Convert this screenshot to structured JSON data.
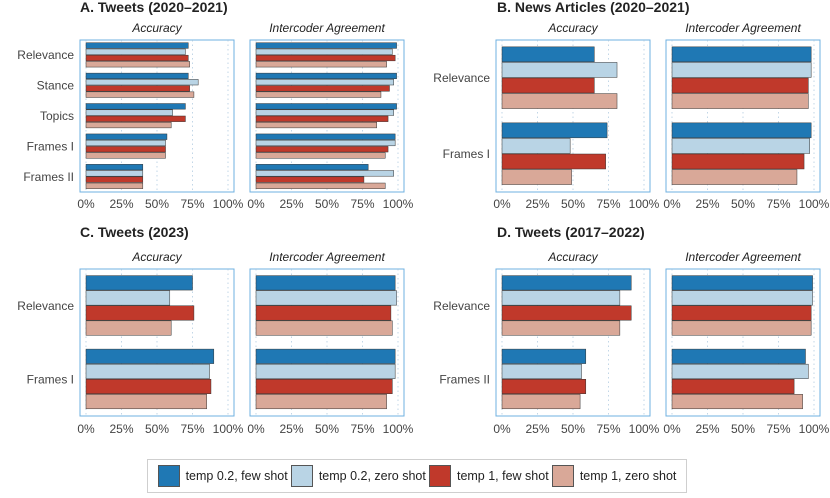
{
  "colors": {
    "temp02_few": "#1f78b4",
    "temp02_zero": "#b9d4e5",
    "temp1_few": "#c0392b",
    "temp1_zero": "#d9a898",
    "frame_border": "#6fb0e0",
    "gridline": "#a8c6dd"
  },
  "legend": [
    {
      "label": "temp 0.2, few shot",
      "color": "#1f78b4"
    },
    {
      "label": "temp 0.2, zero shot",
      "color": "#b9d4e5"
    },
    {
      "label": "temp 1, few shot",
      "color": "#c0392b"
    },
    {
      "label": "temp 1, zero shot",
      "color": "#d9a898"
    }
  ],
  "chart_data": [
    {
      "type": "bar",
      "orientation": "horizontal",
      "title": "A. Tweets (2020–2021)",
      "facets": [
        "Accuracy",
        "Intercoder Agreement"
      ],
      "categories": [
        "Relevance",
        "Stance",
        "Topics",
        "Frames I",
        "Frames II"
      ],
      "xlim": [
        0,
        1
      ],
      "xticks": [
        "0%",
        "25%",
        "50%",
        "75%",
        "100%"
      ],
      "series": [
        {
          "name": "temp 0.2, few shot",
          "values": [
            [
              0.72,
              0.72,
              0.7,
              0.57,
              0.4
            ],
            [
              0.99,
              0.99,
              0.99,
              0.98,
              0.79
            ]
          ]
        },
        {
          "name": "temp 0.2, zero shot",
          "values": [
            [
              0.7,
              0.79,
              0.61,
              0.56,
              0.4
            ],
            [
              0.96,
              0.97,
              0.97,
              0.98,
              0.97
            ]
          ]
        },
        {
          "name": "temp 1, few shot",
          "values": [
            [
              0.72,
              0.73,
              0.7,
              0.56,
              0.4
            ],
            [
              0.98,
              0.94,
              0.93,
              0.93,
              0.76
            ]
          ]
        },
        {
          "name": "temp 1, zero shot",
          "values": [
            [
              0.73,
              0.76,
              0.6,
              0.56,
              0.4
            ],
            [
              0.92,
              0.88,
              0.85,
              0.91,
              0.91
            ]
          ]
        }
      ]
    },
    {
      "type": "bar",
      "orientation": "horizontal",
      "title": "B. News Articles (2020–2021)",
      "facets": [
        "Accuracy",
        "Intercoder Agreement"
      ],
      "categories": [
        "Relevance",
        "Frames I"
      ],
      "xlim": [
        0,
        1
      ],
      "xticks": [
        "0%",
        "25%",
        "50%",
        "75%",
        "100%"
      ],
      "series": [
        {
          "name": "temp 0.2, few shot",
          "values": [
            [
              0.65,
              0.74
            ],
            [
              0.98,
              0.98
            ]
          ]
        },
        {
          "name": "temp 0.2, zero shot",
          "values": [
            [
              0.81,
              0.48
            ],
            [
              0.98,
              0.97
            ]
          ]
        },
        {
          "name": "temp 1, few shot",
          "values": [
            [
              0.65,
              0.73
            ],
            [
              0.96,
              0.93
            ]
          ]
        },
        {
          "name": "temp 1, zero shot",
          "values": [
            [
              0.81,
              0.49
            ],
            [
              0.96,
              0.88
            ]
          ]
        }
      ]
    },
    {
      "type": "bar",
      "orientation": "horizontal",
      "title": "C. Tweets (2023)",
      "facets": [
        "Accuracy",
        "Intercoder Agreement"
      ],
      "categories": [
        "Relevance",
        "Frames I"
      ],
      "xlim": [
        0,
        1
      ],
      "xticks": [
        "0%",
        "25%",
        "50%",
        "75%",
        "100%"
      ],
      "series": [
        {
          "name": "temp 0.2, few shot",
          "values": [
            [
              0.75,
              0.9
            ],
            [
              0.98,
              0.98
            ]
          ]
        },
        {
          "name": "temp 0.2, zero shot",
          "values": [
            [
              0.59,
              0.87
            ],
            [
              0.99,
              0.98
            ]
          ]
        },
        {
          "name": "temp 1, few shot",
          "values": [
            [
              0.76,
              0.88
            ],
            [
              0.95,
              0.96
            ]
          ]
        },
        {
          "name": "temp 1, zero shot",
          "values": [
            [
              0.6,
              0.85
            ],
            [
              0.96,
              0.92
            ]
          ]
        }
      ]
    },
    {
      "type": "bar",
      "orientation": "horizontal",
      "title": "D. Tweets (2017–2022)",
      "facets": [
        "Accuracy",
        "Intercoder Agreement"
      ],
      "categories": [
        "Relevance",
        "Frames II"
      ],
      "xlim": [
        0,
        1
      ],
      "xticks": [
        "0%",
        "25%",
        "50%",
        "75%",
        "100%"
      ],
      "series": [
        {
          "name": "temp 0.2, few shot",
          "values": [
            [
              0.91,
              0.59
            ],
            [
              0.99,
              0.94
            ]
          ]
        },
        {
          "name": "temp 0.2, zero shot",
          "values": [
            [
              0.83,
              0.56
            ],
            [
              0.99,
              0.96
            ]
          ]
        },
        {
          "name": "temp 1, few shot",
          "values": [
            [
              0.91,
              0.59
            ],
            [
              0.98,
              0.86
            ]
          ]
        },
        {
          "name": "temp 1, zero shot",
          "values": [
            [
              0.83,
              0.55
            ],
            [
              0.98,
              0.92
            ]
          ]
        }
      ]
    }
  ]
}
